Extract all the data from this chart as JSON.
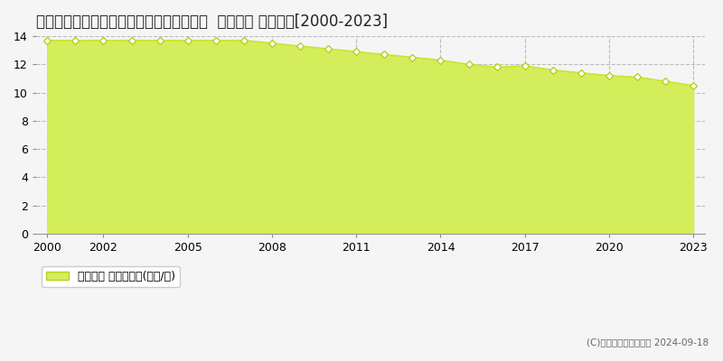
{
  "title": "新潟県上越市大字青木字芝原２６１番３６  公示地価 地価推移[2000-2023]",
  "years": [
    2000,
    2001,
    2002,
    2003,
    2004,
    2005,
    2006,
    2007,
    2008,
    2009,
    2010,
    2011,
    2012,
    2013,
    2014,
    2015,
    2016,
    2017,
    2018,
    2019,
    2020,
    2021,
    2022,
    2023
  ],
  "values": [
    13.7,
    13.7,
    13.7,
    13.7,
    13.7,
    13.7,
    13.7,
    13.7,
    13.5,
    13.3,
    13.1,
    12.9,
    12.7,
    12.5,
    12.3,
    12.0,
    11.8,
    11.9,
    11.6,
    11.4,
    11.2,
    11.1,
    10.8,
    10.5
  ],
  "line_color": "#c8e632",
  "fill_color": "#d4ed5a",
  "marker_facecolor": "#ffffff",
  "marker_edgecolor": "#b8d020",
  "ylim": [
    0,
    14
  ],
  "yticks": [
    0,
    2,
    4,
    6,
    8,
    10,
    12,
    14
  ],
  "xticks": [
    2000,
    2002,
    2005,
    2008,
    2011,
    2014,
    2017,
    2020,
    2023
  ],
  "grid_color": "#bbbbbb",
  "bg_color": "#f5f5f5",
  "plot_bg_color": "#f5f5f5",
  "legend_label": "公示地価 平均坪単価(万円/坪)",
  "copyright_text": "(C)土地価格ドットコム 2024-09-18",
  "title_fontsize": 12,
  "axis_fontsize": 9,
  "legend_fontsize": 9
}
